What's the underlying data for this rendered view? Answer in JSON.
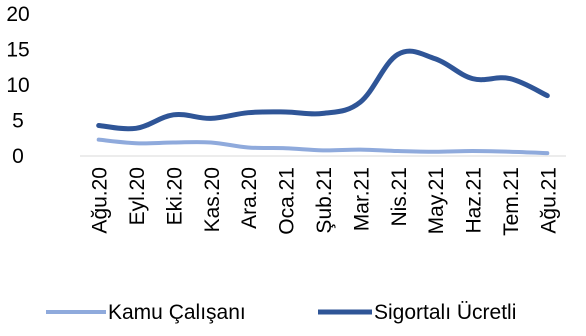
{
  "chart_data": {
    "type": "line",
    "categories": [
      "Ağu.20",
      "Eyl.20",
      "Eki.20",
      "Kas.20",
      "Ara.20",
      "Oca.21",
      "Şub.21",
      "Mar.21",
      "Nis.21",
      "May.21",
      "Haz.21",
      "Tem.21",
      "Ağu.21"
    ],
    "series": [
      {
        "name": "Kamu Çalışanı",
        "color": "#8faadc",
        "values": [
          2.3,
          1.8,
          1.9,
          1.9,
          1.2,
          1.1,
          0.8,
          0.9,
          0.7,
          0.6,
          0.7,
          0.6,
          0.4
        ]
      },
      {
        "name": "Sigortalı Ücretli",
        "color": "#2f5597",
        "values": [
          4.3,
          3.9,
          5.8,
          5.3,
          6.1,
          6.2,
          6.0,
          7.6,
          14.3,
          13.7,
          10.9,
          10.9,
          8.5
        ]
      }
    ],
    "yticks": [
      0,
      5,
      10,
      15,
      20
    ],
    "ylim": [
      0,
      20
    ],
    "grid": false,
    "legend_position": "bottom",
    "title": "",
    "xlabel": "",
    "ylabel": ""
  }
}
